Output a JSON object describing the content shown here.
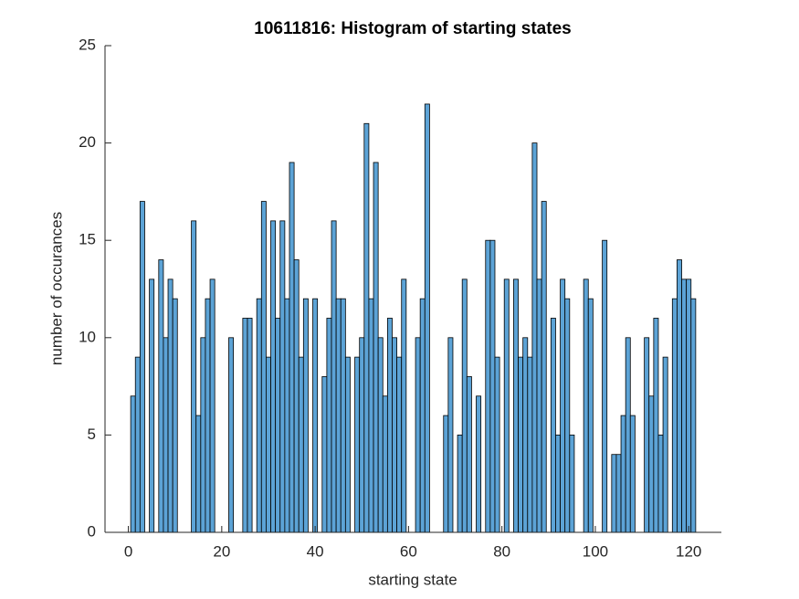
{
  "chart_data": {
    "type": "histogram",
    "title": "10611816: Histogram of starting states",
    "xlabel": "starting state",
    "ylabel": "number of occurances",
    "bins": [
      0.5,
      1.5,
      2.5,
      3.5,
      4.5,
      5.5,
      6.5,
      7.5,
      8.5,
      9.5,
      10.5,
      11.5,
      12.5,
      13.5,
      14.5,
      15.5,
      16.5,
      17.5,
      18.5,
      19.5,
      20.5,
      21.5,
      22.5,
      23.5,
      24.5,
      25.5,
      26.5,
      27.5,
      28.5,
      29.5,
      30.5,
      31.5,
      32.5,
      33.5,
      34.5,
      35.5,
      36.5,
      37.5,
      38.5,
      39.5,
      40.5,
      41.5,
      42.5,
      43.5,
      44.5,
      45.5,
      46.5,
      47.5,
      48.5,
      49.5,
      50.5,
      51.5,
      52.5,
      53.5,
      54.5,
      55.5,
      56.5,
      57.5,
      58.5,
      59.5,
      60.5,
      61.5,
      62.5,
      63.5,
      64.5,
      65.5,
      66.5,
      67.5,
      68.5,
      69.5,
      70.5,
      71.5,
      72.5,
      73.5,
      74.5,
      75.5,
      76.5,
      77.5,
      78.5,
      79.5,
      80.5,
      81.5,
      82.5,
      83.5,
      84.5,
      85.5,
      86.5,
      87.5,
      88.5,
      89.5,
      90.5,
      91.5,
      92.5,
      93.5,
      94.5,
      95.5,
      96.5,
      97.5,
      98.5,
      99.5,
      100.5,
      101.5,
      102.5,
      103.5,
      104.5,
      105.5,
      106.5,
      107.5,
      108.5,
      109.5,
      110.5,
      111.5,
      112.5,
      113.5,
      114.5,
      115.5,
      116.5,
      117.5,
      118.5,
      119.5,
      120.5,
      121.5
    ],
    "values": [
      7,
      9,
      17,
      0,
      13,
      0,
      14,
      10,
      13,
      12,
      0,
      0,
      0,
      16,
      6,
      10,
      12,
      13,
      0,
      0,
      0,
      10,
      0,
      0,
      11,
      11,
      0,
      12,
      17,
      9,
      16,
      11,
      16,
      12,
      19,
      14,
      9,
      12,
      0,
      12,
      0,
      8,
      11,
      16,
      12,
      12,
      9,
      0,
      9,
      10,
      21,
      12,
      19,
      10,
      7,
      11,
      10,
      9,
      13,
      0,
      0,
      10,
      12,
      22,
      0,
      0,
      0,
      6,
      10,
      0,
      5,
      13,
      8,
      0,
      7,
      0,
      15,
      15,
      9,
      0,
      13,
      0,
      13,
      9,
      10,
      9,
      20,
      13,
      17,
      0,
      11,
      5,
      13,
      12,
      5,
      0,
      0,
      13,
      12,
      0,
      0,
      15,
      0,
      4,
      4,
      6,
      10,
      6,
      0,
      0,
      10,
      7,
      11,
      5,
      9,
      0,
      12,
      14,
      13,
      13,
      12
    ],
    "color": "#5ca3d6",
    "xlim": [
      -5,
      127
    ],
    "xticks": [
      0,
      20,
      40,
      60,
      80,
      100,
      120
    ],
    "ylim": [
      0,
      25
    ],
    "yticks": [
      0,
      5,
      10,
      15,
      20,
      25
    ]
  }
}
